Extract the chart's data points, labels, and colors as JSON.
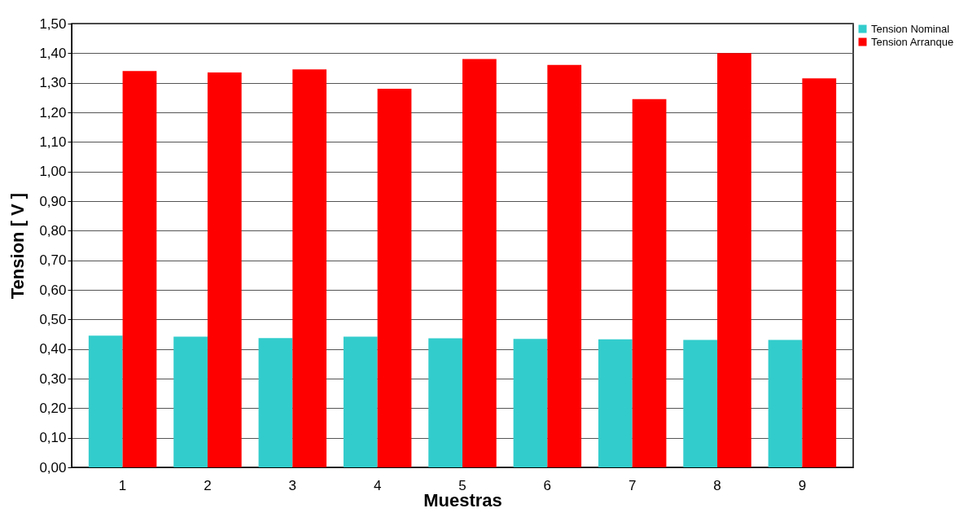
{
  "chart_data": {
    "type": "bar",
    "xlabel": "Muestras",
    "ylabel": "Tension [ V ]",
    "categories": [
      "1",
      "2",
      "3",
      "4",
      "5",
      "6",
      "7",
      "8",
      "9"
    ],
    "series": [
      {
        "name": "Tension Nominal",
        "color": "#33cccc",
        "values": [
          0.445,
          0.442,
          0.437,
          0.442,
          0.436,
          0.434,
          0.433,
          0.431,
          0.431
        ]
      },
      {
        "name": "Tension Arranque",
        "color": "#ff0000",
        "values": [
          1.34,
          1.335,
          1.345,
          1.28,
          1.38,
          1.36,
          1.245,
          1.4,
          1.315
        ]
      }
    ],
    "ylim": [
      0,
      1.5
    ],
    "yticks": [
      {
        "value": 0,
        "label": "0,00"
      },
      {
        "value": 0.1,
        "label": "0,10"
      },
      {
        "value": 0.2,
        "label": "0,20"
      },
      {
        "value": 0.3,
        "label": "0,30"
      },
      {
        "value": 0.4,
        "label": "0,40"
      },
      {
        "value": 0.5,
        "label": "0,50"
      },
      {
        "value": 0.6,
        "label": "0,60"
      },
      {
        "value": 0.7,
        "label": "0,70"
      },
      {
        "value": 0.8,
        "label": "0,80"
      },
      {
        "value": 0.9,
        "label": "0,90"
      },
      {
        "value": 1.0,
        "label": "1,00"
      },
      {
        "value": 1.1,
        "label": "1,10"
      },
      {
        "value": 1.2,
        "label": "1,20"
      },
      {
        "value": 1.3,
        "label": "1,30"
      },
      {
        "value": 1.4,
        "label": "1,40"
      },
      {
        "value": 1.5,
        "label": "1,50"
      }
    ],
    "grid": "y",
    "legend": "top right"
  }
}
